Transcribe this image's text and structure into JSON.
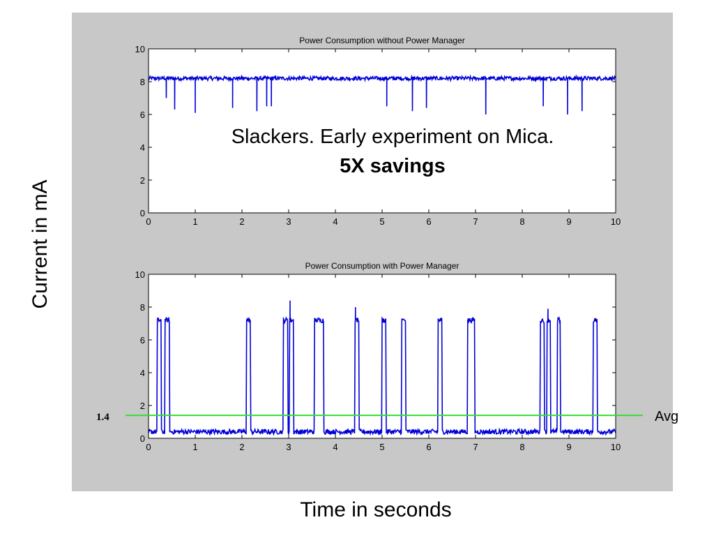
{
  "figure": {
    "ylabel": "Current in mA",
    "xlabel": "Time in seconds",
    "annotation_line1": "Slackers. Early experiment on Mica.",
    "annotation_line2": "5X savings",
    "avg_value_label": "1.4",
    "avg_label": "Avg",
    "colors": {
      "panel": "#c8c8c8",
      "series": "#0000d8",
      "avg_line": "#33dd33",
      "plot_bg": "#ffffff"
    }
  },
  "chart_data": [
    {
      "type": "line",
      "title": "Power Consumption without Power Manager",
      "xlim": [
        0,
        10
      ],
      "ylim": [
        0,
        10
      ],
      "xticks": [
        0,
        1,
        2,
        3,
        4,
        5,
        6,
        7,
        8,
        9,
        10
      ],
      "yticks": [
        0,
        2,
        4,
        6,
        8,
        10
      ],
      "baseline": 8.2,
      "noise": 0.12,
      "dips": [
        {
          "x": 0.38,
          "y": 7.0
        },
        {
          "x": 0.56,
          "y": 6.3
        },
        {
          "x": 1.0,
          "y": 6.1
        },
        {
          "x": 1.8,
          "y": 6.4
        },
        {
          "x": 2.32,
          "y": 6.2
        },
        {
          "x": 2.53,
          "y": 6.5
        },
        {
          "x": 2.63,
          "y": 6.5
        },
        {
          "x": 5.1,
          "y": 6.5
        },
        {
          "x": 5.65,
          "y": 6.2
        },
        {
          "x": 5.95,
          "y": 6.4
        },
        {
          "x": 7.22,
          "y": 6.0
        },
        {
          "x": 8.45,
          "y": 6.5
        },
        {
          "x": 8.97,
          "y": 6.0
        },
        {
          "x": 9.28,
          "y": 6.2
        }
      ]
    },
    {
      "type": "line",
      "title": "Power Consumption with Power Manager",
      "xlim": [
        0,
        10
      ],
      "ylim": [
        0,
        10
      ],
      "xticks": [
        0,
        1,
        2,
        3,
        4,
        5,
        6,
        7,
        8,
        9,
        10
      ],
      "yticks": [
        0,
        2,
        4,
        6,
        8,
        10
      ],
      "baseline": 0.4,
      "high_level": 7.2,
      "noise": 0.15,
      "pulses": [
        [
          0.18,
          0.27
        ],
        [
          0.35,
          0.45
        ],
        [
          2.1,
          2.18
        ],
        [
          2.88,
          2.98
        ],
        [
          3.02,
          3.1
        ],
        [
          3.55,
          3.75
        ],
        [
          4.42,
          4.5
        ],
        [
          5.0,
          5.08
        ],
        [
          5.42,
          5.5
        ],
        [
          6.2,
          6.28
        ],
        [
          6.83,
          6.98
        ],
        [
          8.38,
          8.47
        ],
        [
          8.53,
          8.6
        ],
        [
          8.75,
          8.82
        ],
        [
          9.52,
          9.6
        ]
      ],
      "spikes": [
        {
          "x": 3.03,
          "y": 8.4
        },
        {
          "x": 4.43,
          "y": 8.0
        },
        {
          "x": 8.55,
          "y": 7.9
        }
      ],
      "avg": 1.4
    }
  ]
}
